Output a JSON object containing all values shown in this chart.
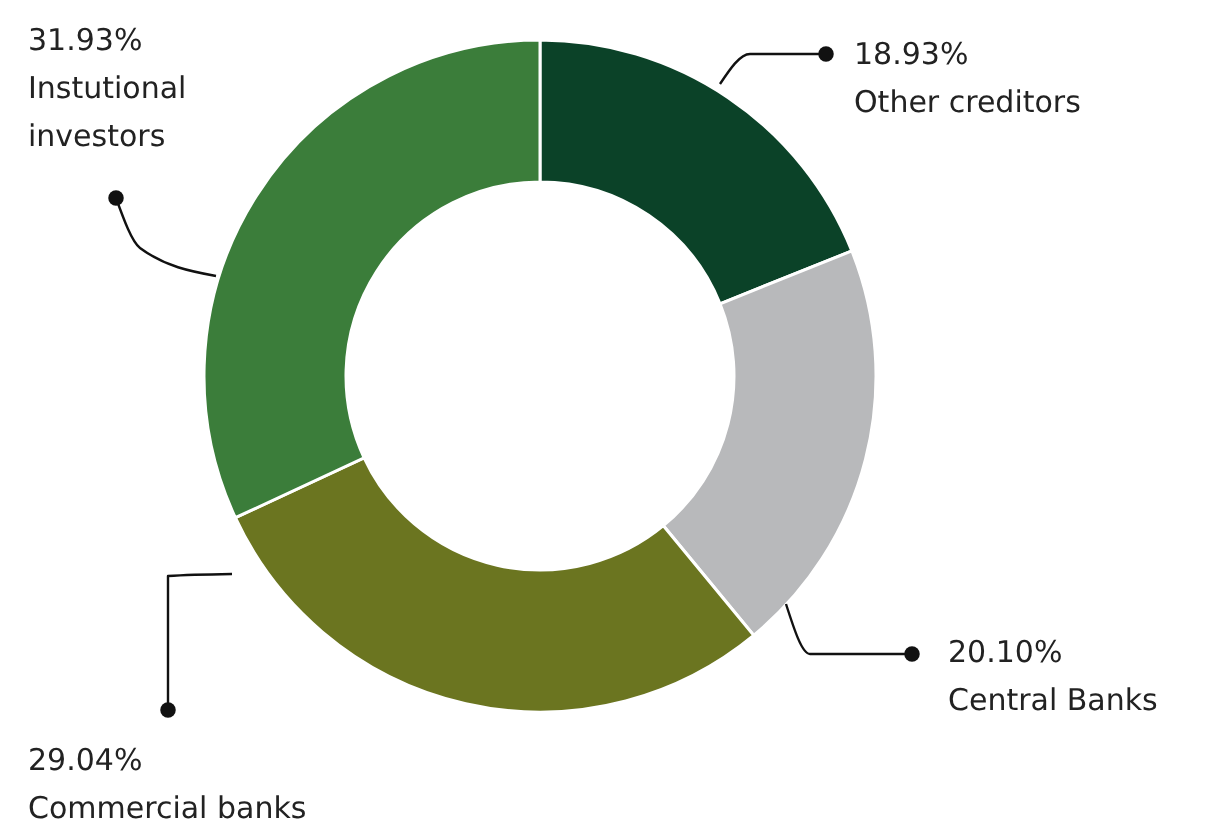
{
  "chart_data": {
    "type": "donut",
    "categories": [
      "Other creditors",
      "Central Banks",
      "Commercial banks",
      "Instutional investors"
    ],
    "values": [
      18.93,
      20.1,
      29.04,
      31.93
    ],
    "value_labels": [
      "18.93%",
      "20.10%",
      "29.04%",
      "31.93%"
    ],
    "colors": [
      "#0b4228",
      "#b8b9bb",
      "#6b7520",
      "#3b7d3a"
    ]
  }
}
